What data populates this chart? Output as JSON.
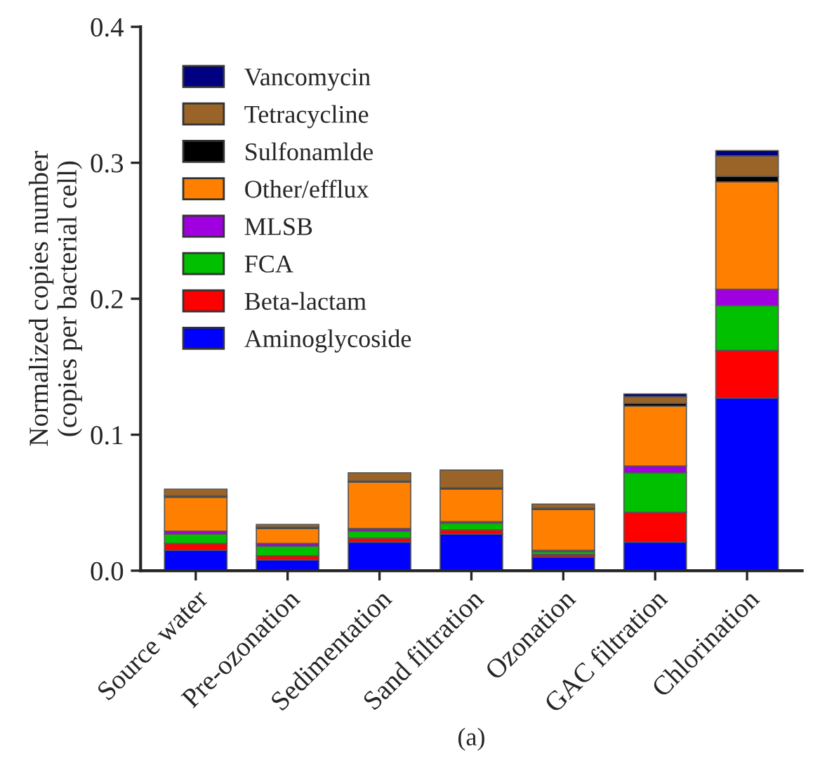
{
  "chart_data": {
    "type": "bar",
    "stacked": true,
    "ylabel": "Normalized copies number\n(copies per bacterial cell)",
    "categories": [
      "Source water",
      "Pre-ozonation",
      "Sedimentation",
      "Sand filtration",
      "Ozonation",
      "GAC filtration",
      "Chlorination"
    ],
    "series": [
      {
        "name": "Aminoglycoside",
        "color": "#0000ff",
        "values": [
          0.015,
          0.008,
          0.021,
          0.027,
          0.01,
          0.021,
          0.127
        ]
      },
      {
        "name": "Beta-lactam",
        "color": "#ff0000",
        "values": [
          0.005,
          0.003,
          0.003,
          0.003,
          0.002,
          0.022,
          0.035
        ]
      },
      {
        "name": "FCA",
        "color": "#00c000",
        "values": [
          0.007,
          0.007,
          0.005,
          0.005,
          0.002,
          0.029,
          0.033
        ]
      },
      {
        "name": "MLSB",
        "color": "#a000e0",
        "values": [
          0.002,
          0.002,
          0.002,
          0.001,
          0.001,
          0.005,
          0.012
        ]
      },
      {
        "name": "Other/efflux",
        "color": "#ff8000",
        "values": [
          0.025,
          0.011,
          0.034,
          0.024,
          0.03,
          0.044,
          0.079
        ]
      },
      {
        "name": "Sulfonamlde",
        "color": "#000000",
        "values": [
          0.001,
          0.001,
          0.001,
          0.001,
          0.001,
          0.002,
          0.004
        ]
      },
      {
        "name": "Tetracycline",
        "color": "#9a6428",
        "values": [
          0.005,
          0.002,
          0.006,
          0.013,
          0.003,
          0.005,
          0.015
        ]
      },
      {
        "name": "Vancomycin",
        "color": "#000080",
        "values": [
          null,
          null,
          null,
          null,
          null,
          0.002,
          0.004
        ]
      }
    ],
    "ylim": [
      0,
      0.4
    ],
    "yticks": [
      {
        "value": 0,
        "label": "0.0"
      },
      0.1,
      0.2,
      0.3,
      0.4
    ],
    "legend": "top left",
    "annotations": [
      "(a)"
    ]
  }
}
